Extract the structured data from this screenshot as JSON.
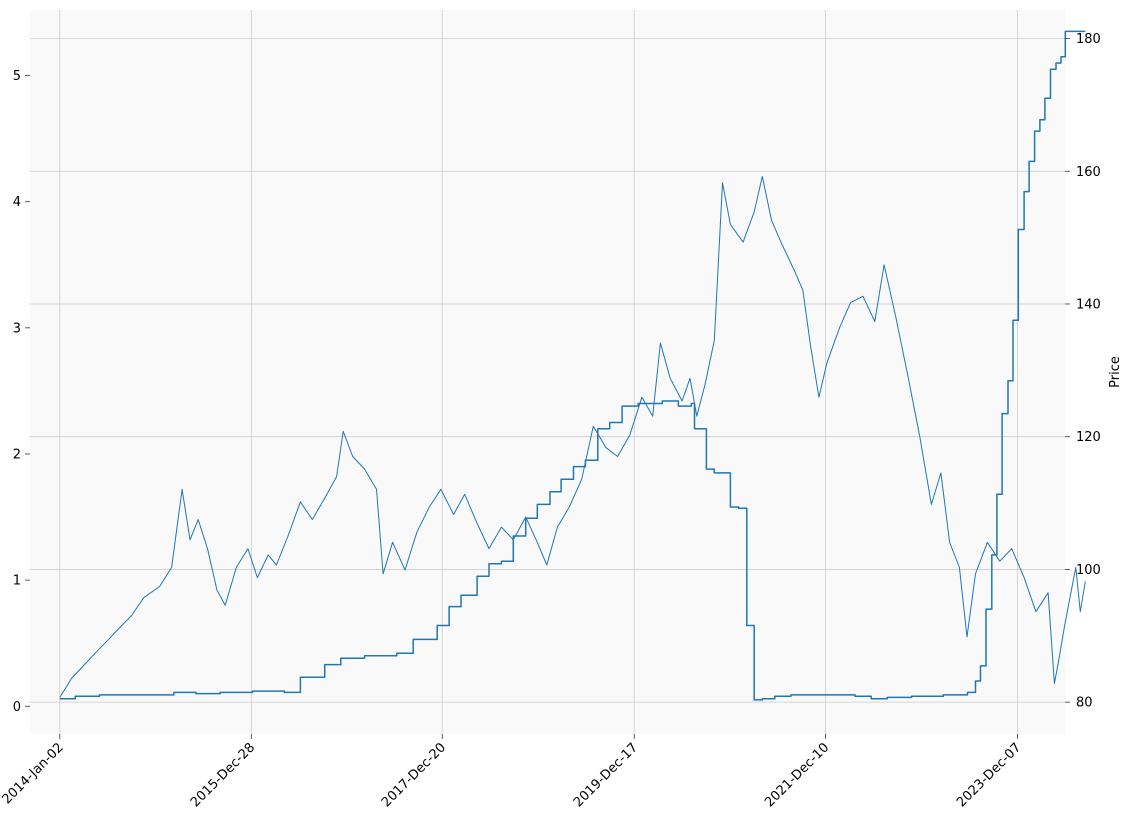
{
  "chart_data": {
    "type": "line",
    "xlabel": "",
    "ylabel_left": "",
    "ylabel_right": "Price",
    "x_range": [
      "2013-09-11",
      "2024-06-04"
    ],
    "y_left_range": [
      -0.22,
      5.52
    ],
    "y_right_range": [
      75.2,
      184.3
    ],
    "x_ticks": [
      {
        "date": "2014-01-02",
        "label": "2014-Jan-02"
      },
      {
        "date": "2015-12-28",
        "label": "2015-Dec-28"
      },
      {
        "date": "2017-12-20",
        "label": "2017-Dec-20"
      },
      {
        "date": "2019-12-17",
        "label": "2019-Dec-17"
      },
      {
        "date": "2021-12-10",
        "label": "2021-Dec-10"
      },
      {
        "date": "2023-12-07",
        "label": "2023-Dec-07"
      }
    ],
    "y_left_ticks": [
      0,
      1,
      2,
      3,
      4,
      5
    ],
    "y_right_ticks": [
      80,
      100,
      120,
      140,
      160,
      180
    ],
    "grid": true,
    "background": "#f9f9f9",
    "series_color": "#1f77b4",
    "series": [
      {
        "axis": "left",
        "style": "thin",
        "points": [
          [
            "2014-01-02",
            0.07
          ],
          [
            "2014-02-15",
            0.22
          ],
          [
            "2014-04-01",
            0.32
          ],
          [
            "2014-05-15",
            0.42
          ],
          [
            "2014-07-01",
            0.52
          ],
          [
            "2014-08-15",
            0.62
          ],
          [
            "2014-10-01",
            0.72
          ],
          [
            "2014-11-15",
            0.86
          ],
          [
            "2015-01-15",
            0.95
          ],
          [
            "2015-03-01",
            1.1
          ],
          [
            "2015-04-10",
            1.72
          ],
          [
            "2015-05-10",
            1.32
          ],
          [
            "2015-06-10",
            1.48
          ],
          [
            "2015-07-15",
            1.25
          ],
          [
            "2015-08-20",
            0.92
          ],
          [
            "2015-09-20",
            0.8
          ],
          [
            "2015-11-01",
            1.1
          ],
          [
            "2015-12-15",
            1.25
          ],
          [
            "2016-01-20",
            1.02
          ],
          [
            "2016-03-01",
            1.2
          ],
          [
            "2016-04-01",
            1.12
          ],
          [
            "2016-05-15",
            1.35
          ],
          [
            "2016-07-01",
            1.62
          ],
          [
            "2016-08-15",
            1.48
          ],
          [
            "2016-10-01",
            1.65
          ],
          [
            "2016-11-15",
            1.82
          ],
          [
            "2016-12-10",
            2.18
          ],
          [
            "2017-01-15",
            1.98
          ],
          [
            "2017-03-01",
            1.88
          ],
          [
            "2017-04-15",
            1.72
          ],
          [
            "2017-05-10",
            1.05
          ],
          [
            "2017-06-15",
            1.3
          ],
          [
            "2017-08-01",
            1.08
          ],
          [
            "2017-09-15",
            1.38
          ],
          [
            "2017-11-01",
            1.58
          ],
          [
            "2017-12-15",
            1.72
          ],
          [
            "2018-02-01",
            1.52
          ],
          [
            "2018-03-15",
            1.68
          ],
          [
            "2018-05-01",
            1.45
          ],
          [
            "2018-06-15",
            1.25
          ],
          [
            "2018-08-01",
            1.42
          ],
          [
            "2018-09-15",
            1.32
          ],
          [
            "2018-11-01",
            1.5
          ],
          [
            "2018-12-15",
            1.3
          ],
          [
            "2019-01-20",
            1.12
          ],
          [
            "2019-03-01",
            1.42
          ],
          [
            "2019-04-15",
            1.58
          ],
          [
            "2019-06-01",
            1.8
          ],
          [
            "2019-07-15",
            2.22
          ],
          [
            "2019-09-01",
            2.05
          ],
          [
            "2019-10-15",
            1.98
          ],
          [
            "2019-11-30",
            2.15
          ],
          [
            "2020-01-15",
            2.45
          ],
          [
            "2020-02-25",
            2.3
          ],
          [
            "2020-03-25",
            2.88
          ],
          [
            "2020-05-01",
            2.6
          ],
          [
            "2020-06-15",
            2.42
          ],
          [
            "2020-07-15",
            2.6
          ],
          [
            "2020-08-10",
            2.3
          ],
          [
            "2020-09-10",
            2.55
          ],
          [
            "2020-10-15",
            2.9
          ],
          [
            "2020-11-15",
            4.15
          ],
          [
            "2020-12-15",
            3.82
          ],
          [
            "2021-02-01",
            3.68
          ],
          [
            "2021-03-15",
            3.92
          ],
          [
            "2021-04-15",
            4.2
          ],
          [
            "2021-05-20",
            3.85
          ],
          [
            "2021-07-01",
            3.65
          ],
          [
            "2021-08-15",
            3.45
          ],
          [
            "2021-09-15",
            3.3
          ],
          [
            "2021-10-15",
            2.85
          ],
          [
            "2021-11-15",
            2.45
          ],
          [
            "2021-12-15",
            2.72
          ],
          [
            "2022-02-01",
            3.0
          ],
          [
            "2022-03-15",
            3.2
          ],
          [
            "2022-05-01",
            3.25
          ],
          [
            "2022-06-15",
            3.05
          ],
          [
            "2022-07-20",
            3.5
          ],
          [
            "2022-09-01",
            3.1
          ],
          [
            "2022-10-15",
            2.65
          ],
          [
            "2022-12-01",
            2.15
          ],
          [
            "2023-01-15",
            1.6
          ],
          [
            "2023-02-20",
            1.85
          ],
          [
            "2023-03-25",
            1.3
          ],
          [
            "2023-05-01",
            1.1
          ],
          [
            "2023-05-30",
            0.55
          ],
          [
            "2023-07-01",
            1.05
          ],
          [
            "2023-08-15",
            1.3
          ],
          [
            "2023-10-01",
            1.15
          ],
          [
            "2023-11-15",
            1.25
          ],
          [
            "2024-01-01",
            1.02
          ],
          [
            "2024-02-15",
            0.75
          ],
          [
            "2024-04-01",
            0.9
          ],
          [
            "2024-04-25",
            0.18
          ],
          [
            "2024-05-10",
            0.35
          ],
          [
            "2024-06-01",
            0.62
          ],
          [
            "2024-07-01",
            0.95
          ],
          [
            "2024-07-15",
            1.1
          ],
          [
            "2024-08-01",
            0.75
          ],
          [
            "2024-08-20",
            0.99
          ]
        ]
      },
      {
        "axis": "left",
        "style": "step",
        "points": [
          [
            "2014-01-02",
            0.06
          ],
          [
            "2014-03-01",
            0.08
          ],
          [
            "2014-06-01",
            0.09
          ],
          [
            "2015-03-10",
            0.11
          ],
          [
            "2015-06-01",
            0.1
          ],
          [
            "2015-09-01",
            0.11
          ],
          [
            "2016-01-01",
            0.12
          ],
          [
            "2016-05-01",
            0.11
          ],
          [
            "2016-07-01",
            0.23
          ],
          [
            "2016-10-01",
            0.33
          ],
          [
            "2016-12-01",
            0.38
          ],
          [
            "2017-03-01",
            0.4
          ],
          [
            "2017-07-01",
            0.42
          ],
          [
            "2017-09-01",
            0.53
          ],
          [
            "2017-12-01",
            0.64
          ],
          [
            "2018-01-15",
            0.79
          ],
          [
            "2018-03-01",
            0.88
          ],
          [
            "2018-05-01",
            1.03
          ],
          [
            "2018-06-15",
            1.13
          ],
          [
            "2018-08-01",
            1.15
          ],
          [
            "2018-09-15",
            1.35
          ],
          [
            "2018-11-01",
            1.49
          ],
          [
            "2018-12-15",
            1.6
          ],
          [
            "2019-02-01",
            1.7
          ],
          [
            "2019-03-15",
            1.8
          ],
          [
            "2019-05-01",
            1.9
          ],
          [
            "2019-06-15",
            1.95
          ],
          [
            "2019-08-01",
            2.2
          ],
          [
            "2019-09-15",
            2.25
          ],
          [
            "2019-11-01",
            2.38
          ],
          [
            "2020-01-01",
            2.4
          ],
          [
            "2020-04-01",
            2.42
          ],
          [
            "2020-06-01",
            2.38
          ],
          [
            "2020-07-20",
            2.4
          ],
          [
            "2020-08-01",
            2.2
          ],
          [
            "2020-09-15",
            1.88
          ],
          [
            "2020-10-15",
            1.85
          ],
          [
            "2020-12-15",
            1.58
          ],
          [
            "2021-01-15",
            1.57
          ],
          [
            "2021-02-15",
            0.64
          ],
          [
            "2021-03-15",
            0.05
          ],
          [
            "2021-04-15",
            0.06
          ],
          [
            "2021-06-01",
            0.08
          ],
          [
            "2021-08-01",
            0.09
          ],
          [
            "2022-04-01",
            0.08
          ],
          [
            "2022-06-01",
            0.06
          ],
          [
            "2022-08-01",
            0.07
          ],
          [
            "2022-11-01",
            0.08
          ],
          [
            "2023-03-01",
            0.09
          ],
          [
            "2023-06-01",
            0.11
          ],
          [
            "2023-07-01",
            0.2
          ],
          [
            "2023-07-20",
            0.32
          ],
          [
            "2023-08-10",
            0.77
          ],
          [
            "2023-09-01",
            1.2
          ],
          [
            "2023-09-20",
            1.68
          ],
          [
            "2023-10-10",
            2.32
          ],
          [
            "2023-11-01",
            2.58
          ],
          [
            "2023-11-20",
            3.06
          ],
          [
            "2023-12-10",
            3.78
          ],
          [
            "2024-01-01",
            4.08
          ],
          [
            "2024-01-20",
            4.32
          ],
          [
            "2024-02-10",
            4.56
          ],
          [
            "2024-03-01",
            4.65
          ],
          [
            "2024-03-20",
            4.82
          ],
          [
            "2024-04-10",
            5.05
          ],
          [
            "2024-05-01",
            5.1
          ],
          [
            "2024-05-20",
            5.15
          ],
          [
            "2024-06-05",
            5.35
          ],
          [
            "2024-08-20",
            5.35
          ]
        ]
      }
    ]
  }
}
